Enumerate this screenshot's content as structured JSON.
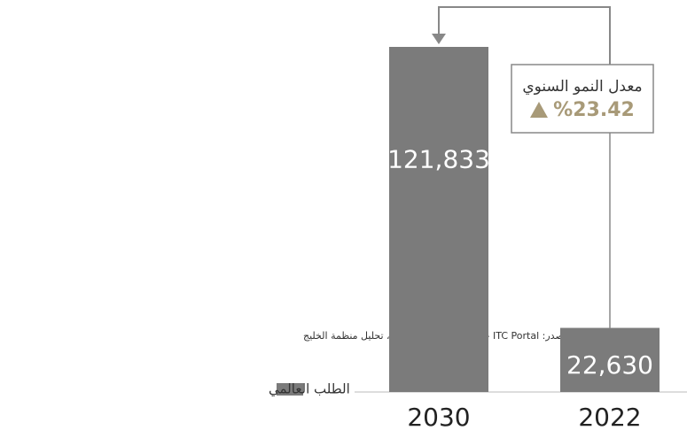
{
  "chart_data": {
    "type": "bar",
    "categories": [
      "2030",
      "2022"
    ],
    "values": [
      121833,
      22630
    ],
    "value_labels": [
      "121,833",
      "22,630"
    ],
    "color": "#7b7b7b",
    "legend": "الطلب العالمي",
    "annotation": {
      "title": "معدل النمو السنوي",
      "value": "%23.42"
    },
    "source": "المصدر: UN Comtrade Data – ITC Portal، تحليل منظمة الخليج"
  }
}
